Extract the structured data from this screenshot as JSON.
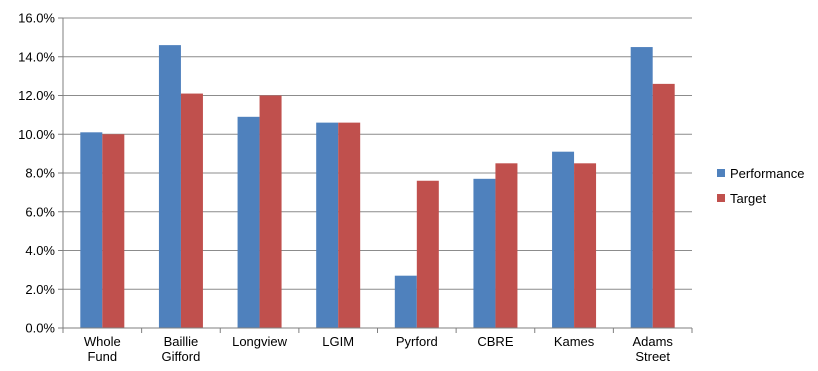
{
  "chart_data": {
    "type": "bar",
    "categories": [
      [
        "Whole",
        "Fund"
      ],
      [
        "Baillie",
        "Gifford"
      ],
      [
        "Longview"
      ],
      [
        "LGIM"
      ],
      [
        "Pyrford"
      ],
      [
        "CBRE"
      ],
      [
        "Kames"
      ],
      [
        "Adams",
        "Street"
      ]
    ],
    "series": [
      {
        "name": "Performance",
        "color": "#4F81BD",
        "values": [
          10.1,
          14.6,
          10.9,
          10.6,
          2.7,
          7.7,
          9.1,
          14.5
        ]
      },
      {
        "name": "Target",
        "color": "#C0504D",
        "values": [
          10.0,
          12.1,
          12.0,
          10.6,
          7.6,
          8.5,
          8.5,
          12.6
        ]
      }
    ],
    "title": "",
    "xlabel": "",
    "ylabel": "",
    "ylim": [
      0,
      16
    ],
    "y_ticks": [
      0,
      2,
      4,
      6,
      8,
      10,
      12,
      14,
      16
    ],
    "y_tick_format": "percent_1dp",
    "grid": true,
    "legend_position": "right"
  }
}
